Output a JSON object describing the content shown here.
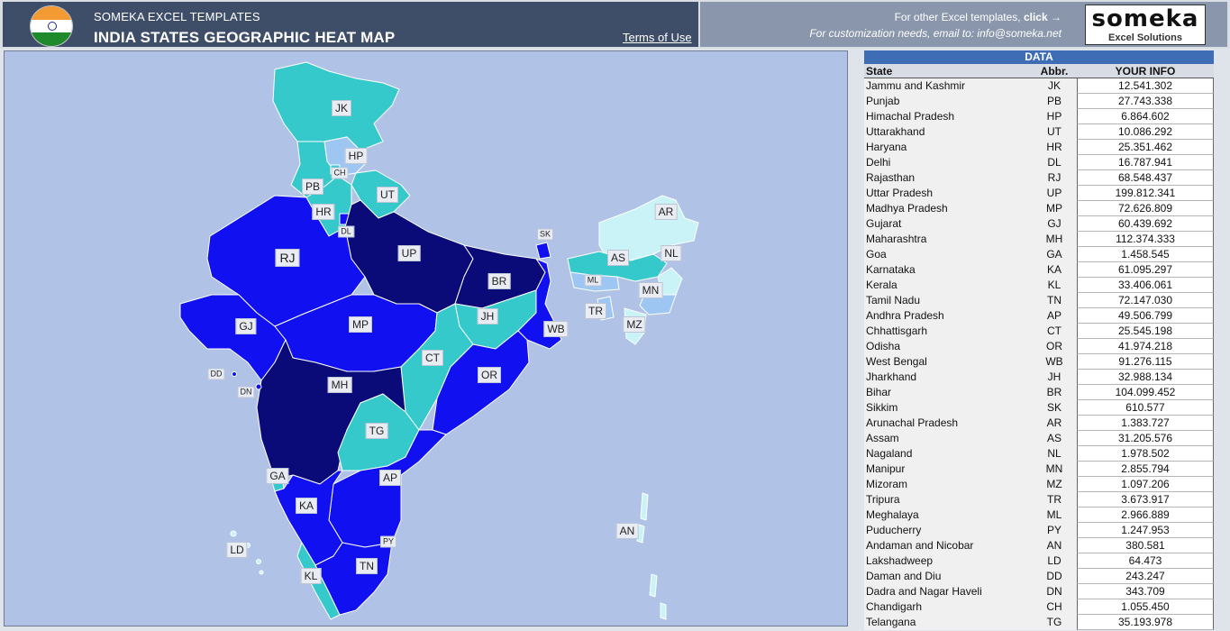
{
  "header": {
    "brand": "SOMEKA EXCEL TEMPLATES",
    "title": "INDIA STATES GEOGRAPHIC HEAT MAP",
    "terms": "Terms of Use",
    "other_templates_prefix": "For other Excel templates, ",
    "other_templates_link": "click →",
    "customization": "For customization needs, email to: info@someka.net",
    "logo_main": "someka",
    "logo_sub": "Excel Solutions"
  },
  "colors": {
    "level1": "#c9f3f7",
    "level2": "#36c9cb",
    "level3": "#9ec6f3",
    "level4": "#1010f0",
    "level5": "#0a0a78",
    "sea": "#b0c3e6"
  },
  "map_labels": [
    "JK",
    "HP",
    "CH",
    "PB",
    "UT",
    "HR",
    "DL",
    "RJ",
    "UP",
    "BR",
    "SK",
    "AR",
    "AS",
    "NL",
    "ML",
    "MN",
    "TR",
    "MZ",
    "GJ",
    "MP",
    "JH",
    "WB",
    "CT",
    "OR",
    "DD",
    "DN",
    "MH",
    "TG",
    "GA",
    "AP",
    "KA",
    "PY",
    "TN",
    "KL",
    "LD",
    "AN"
  ],
  "table": {
    "title": "DATA",
    "col_state": "State",
    "col_abbr": "Abbr.",
    "col_info": "YOUR INFO",
    "rows": [
      {
        "state": "Jammu and Kashmir",
        "abbr": "JK",
        "value": "12.541.302"
      },
      {
        "state": "Punjab",
        "abbr": "PB",
        "value": "27.743.338"
      },
      {
        "state": "Himachal Pradesh",
        "abbr": "HP",
        "value": "6.864.602"
      },
      {
        "state": "Uttarakhand",
        "abbr": "UT",
        "value": "10.086.292"
      },
      {
        "state": "Haryana",
        "abbr": "HR",
        "value": "25.351.462"
      },
      {
        "state": "Delhi",
        "abbr": "DL",
        "value": "16.787.941"
      },
      {
        "state": "Rajasthan",
        "abbr": "RJ",
        "value": "68.548.437"
      },
      {
        "state": "Uttar Pradesh",
        "abbr": "UP",
        "value": "199.812.341"
      },
      {
        "state": "Madhya Pradesh",
        "abbr": "MP",
        "value": "72.626.809"
      },
      {
        "state": "Gujarat",
        "abbr": "GJ",
        "value": "60.439.692"
      },
      {
        "state": "Maharashtra",
        "abbr": "MH",
        "value": "112.374.333"
      },
      {
        "state": "Goa",
        "abbr": "GA",
        "value": "1.458.545"
      },
      {
        "state": "Karnataka",
        "abbr": "KA",
        "value": "61.095.297"
      },
      {
        "state": "Kerala",
        "abbr": "KL",
        "value": "33.406.061"
      },
      {
        "state": "Tamil Nadu",
        "abbr": "TN",
        "value": "72.147.030"
      },
      {
        "state": "Andhra Pradesh",
        "abbr": "AP",
        "value": "49.506.799"
      },
      {
        "state": "Chhattisgarh",
        "abbr": "CT",
        "value": "25.545.198"
      },
      {
        "state": "Odisha",
        "abbr": "OR",
        "value": "41.974.218"
      },
      {
        "state": "West Bengal",
        "abbr": "WB",
        "value": "91.276.115"
      },
      {
        "state": "Jharkhand",
        "abbr": "JH",
        "value": "32.988.134"
      },
      {
        "state": "Bihar",
        "abbr": "BR",
        "value": "104.099.452"
      },
      {
        "state": "Sikkim",
        "abbr": "SK",
        "value": "610.577"
      },
      {
        "state": "Arunachal Pradesh",
        "abbr": "AR",
        "value": "1.383.727"
      },
      {
        "state": "Assam",
        "abbr": "AS",
        "value": "31.205.576"
      },
      {
        "state": "Nagaland",
        "abbr": "NL",
        "value": "1.978.502"
      },
      {
        "state": "Manipur",
        "abbr": "MN",
        "value": "2.855.794"
      },
      {
        "state": "Mizoram",
        "abbr": "MZ",
        "value": "1.097.206"
      },
      {
        "state": "Tripura",
        "abbr": "TR",
        "value": "3.673.917"
      },
      {
        "state": "Meghalaya",
        "abbr": "ML",
        "value": "2.966.889"
      },
      {
        "state": "Puducherry",
        "abbr": "PY",
        "value": "1.247.953"
      },
      {
        "state": "Andaman and Nicobar",
        "abbr": "AN",
        "value": "380.581"
      },
      {
        "state": "Lakshadweep",
        "abbr": "LD",
        "value": "64.473"
      },
      {
        "state": "Daman and Diu",
        "abbr": "DD",
        "value": "243.247"
      },
      {
        "state": "Dadra and Nagar Haveli",
        "abbr": "DN",
        "value": "343.709"
      },
      {
        "state": "Chandigarh",
        "abbr": "CH",
        "value": "1.055.450"
      },
      {
        "state": "Telangana",
        "abbr": "TG",
        "value": "35.193.978"
      }
    ]
  }
}
